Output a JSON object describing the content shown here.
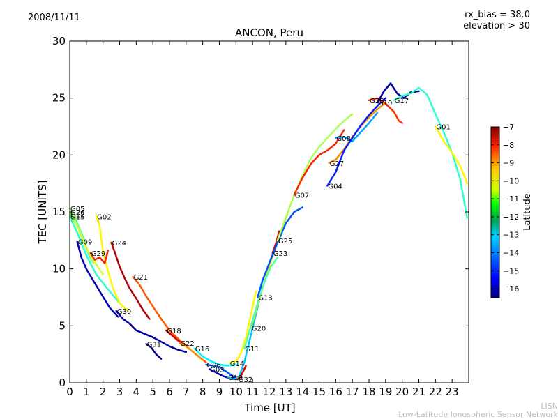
{
  "header": {
    "date": "2008/11/11",
    "note_bias": "rx_bias = 38.0",
    "note_elevation": "elevation > 30"
  },
  "footer": {
    "credit_short": "LISN",
    "credit_long": "Low-Latitude Ionospheric Sensor Network"
  },
  "chart_data": {
    "type": "line",
    "title": "ANCON, Peru",
    "xlabel": "Time [UT]",
    "ylabel": "TEC [UNITS]",
    "xlim": [
      0,
      24
    ],
    "ylim": [
      0,
      30
    ],
    "xticks": [
      "0",
      "1",
      "2",
      "3",
      "4",
      "5",
      "6",
      "7",
      "8",
      "9",
      "10",
      "11",
      "12",
      "13",
      "14",
      "15",
      "16",
      "17",
      "18",
      "19",
      "20",
      "21",
      "22",
      "23"
    ],
    "yticks": [
      "0",
      "5",
      "10",
      "15",
      "20",
      "25",
      "30"
    ],
    "grid": false,
    "colorbar": {
      "label": "Latitude",
      "range": [
        -16.5,
        -7
      ],
      "ticks": [
        "−7",
        "−8",
        "−9",
        "−10",
        "−11",
        "−12",
        "−13",
        "−14",
        "−15",
        "−16"
      ],
      "colormap": "jet"
    },
    "series": [
      {
        "name": "G05",
        "lat": -11.5,
        "x": [
          0,
          0.3,
          0.6,
          1.0,
          1.4
        ],
        "y": [
          15.3,
          14.8,
          13.2,
          11.8,
          10.5
        ]
      },
      {
        "name": "G26",
        "lat": -12.0,
        "x": [
          0,
          0.4,
          0.8,
          1.2
        ],
        "y": [
          15.0,
          14.2,
          12.8,
          11.0
        ]
      },
      {
        "name": "G12",
        "lat": -11.0,
        "x": [
          0,
          0.5,
          1.0,
          1.5,
          2.0
        ],
        "y": [
          14.8,
          13.6,
          11.8,
          10.6,
          9.5
        ]
      },
      {
        "name": "G15",
        "lat": -12.5,
        "x": [
          0,
          0.5,
          1.0,
          1.6,
          2.3,
          3.0
        ],
        "y": [
          14.6,
          13.0,
          11.2,
          9.5,
          8.2,
          7.0
        ]
      },
      {
        "name": "G02",
        "lat": -10.5,
        "x": [
          1.6,
          1.8,
          2.0,
          2.3,
          2.6,
          3.0,
          3.5
        ],
        "y": [
          14.6,
          13.8,
          11.5,
          9.8,
          8.3,
          7.0,
          6.3
        ]
      },
      {
        "name": "G09",
        "lat": -16.0,
        "x": [
          0.45,
          0.7,
          1.0,
          1.4,
          1.9,
          2.4,
          2.9
        ],
        "y": [
          12.4,
          11.0,
          10.0,
          9.0,
          7.8,
          6.6,
          5.8
        ]
      },
      {
        "name": "G29",
        "lat": -8.5,
        "x": [
          1.25,
          1.5,
          1.8,
          2.1,
          2.3
        ],
        "y": [
          11.4,
          10.8,
          11.0,
          10.5,
          11.6
        ]
      },
      {
        "name": "G24",
        "lat": -7.5,
        "x": [
          2.5,
          2.7,
          3.0,
          3.3,
          3.6,
          4.0,
          4.4,
          4.8
        ],
        "y": [
          12.3,
          11.5,
          10.2,
          9.2,
          8.3,
          7.4,
          6.4,
          5.6
        ]
      },
      {
        "name": "G21",
        "lat": -9.0,
        "x": [
          3.8,
          4.2,
          4.6,
          5.0,
          5.5,
          6.0,
          6.5,
          7.0,
          7.6,
          8.2
        ],
        "y": [
          9.3,
          8.6,
          7.6,
          6.7,
          5.6,
          4.6,
          3.9,
          3.2,
          2.5,
          1.8
        ]
      },
      {
        "name": "G30",
        "lat": -16.2,
        "x": [
          2.8,
          3.2,
          3.6,
          4.0,
          4.5,
          5.0,
          5.5,
          6.0,
          6.5,
          7.0
        ],
        "y": [
          6.3,
          5.6,
          5.2,
          4.6,
          4.3,
          4.0,
          3.6,
          3.2,
          2.9,
          2.7
        ]
      },
      {
        "name": "G31",
        "lat": -16.4,
        "x": [
          4.6,
          4.9,
          5.2,
          5.5
        ],
        "y": [
          3.4,
          3.1,
          2.5,
          2.1
        ]
      },
      {
        "name": "G18",
        "lat": -7.8,
        "x": [
          5.8,
          6.2,
          6.6,
          7.0
        ],
        "y": [
          4.6,
          4.1,
          3.6,
          3.2
        ]
      },
      {
        "name": "G22",
        "lat": -9.5,
        "x": [
          6.6,
          7.0,
          7.5,
          8.0
        ],
        "y": [
          3.5,
          3.2,
          2.6,
          2.0
        ]
      },
      {
        "name": "G16",
        "lat": -13.0,
        "x": [
          7.5,
          8.0,
          8.5,
          9.0,
          9.5,
          10.0
        ],
        "y": [
          3.0,
          2.3,
          1.9,
          1.6,
          1.5,
          1.6
        ]
      },
      {
        "name": "G06",
        "lat": -14.5,
        "x": [
          8.2,
          8.6,
          9.0,
          9.4,
          9.8
        ],
        "y": [
          1.6,
          1.5,
          1.4,
          1.0,
          0.6
        ]
      },
      {
        "name": "G03",
        "lat": -16.0,
        "x": [
          8.4,
          8.8,
          9.2,
          9.6,
          10.0
        ],
        "y": [
          1.2,
          0.9,
          0.6,
          0.4,
          0.5
        ]
      },
      {
        "name": "G14",
        "lat": -10.5,
        "x": [
          9.6,
          10.0,
          10.3,
          10.6,
          10.9,
          11.2
        ],
        "y": [
          1.7,
          1.9,
          2.6,
          4.0,
          6.0,
          8.0
        ]
      },
      {
        "name": "G19",
        "lat": -13.5,
        "x": [
          9.5,
          9.9,
          10.2,
          10.5,
          10.8,
          11.2,
          11.6
        ],
        "y": [
          0.5,
          0.3,
          0.6,
          1.8,
          3.6,
          6.0,
          8.5
        ]
      },
      {
        "name": "G32",
        "lat": -7.8,
        "x": [
          10.1,
          10.3,
          10.6
        ],
        "y": [
          0.3,
          0.6,
          1.5
        ]
      },
      {
        "name": "G20",
        "lat": -10.2,
        "x": [
          10.9,
          11.2,
          11.5,
          11.9,
          12.3,
          12.7,
          13.1
        ],
        "y": [
          4.8,
          6.3,
          7.8,
          9.8,
          11.5,
          13.2,
          14.8
        ]
      },
      {
        "name": "G11",
        "lat": -12.2,
        "x": [
          10.5,
          10.9,
          11.3,
          11.7,
          12.1,
          12.5
        ],
        "y": [
          3.0,
          5.0,
          7.0,
          8.8,
          10.2,
          11.0
        ]
      },
      {
        "name": "G23",
        "lat": -7.8,
        "x": [
          12.2,
          12.4,
          12.6
        ],
        "y": [
          11.4,
          12.2,
          13.3
        ]
      },
      {
        "name": "G13",
        "lat": -14.5,
        "x": [
          11.3,
          11.6,
          12.0,
          12.5,
          13.0,
          13.5,
          14.0
        ],
        "y": [
          7.5,
          9.0,
          10.5,
          12.3,
          14.0,
          15.0,
          15.4
        ]
      },
      {
        "name": "G25",
        "lat": -11.3,
        "x": [
          12.5,
          13.0,
          13.5,
          14.0,
          14.5,
          15.0,
          15.5,
          16.0,
          16.5,
          17.0
        ],
        "y": [
          12.5,
          14.5,
          16.5,
          18.2,
          19.7,
          20.7,
          21.5,
          22.3,
          23.0,
          23.6
        ]
      },
      {
        "name": "G07",
        "lat": -8.5,
        "x": [
          13.5,
          14.0,
          14.5,
          15.0,
          15.5,
          16.0,
          16.5
        ],
        "y": [
          16.5,
          18.0,
          19.2,
          20.0,
          20.4,
          21.0,
          22.2
        ]
      },
      {
        "name": "G27",
        "lat": -9.5,
        "x": [
          15.6,
          16.0,
          16.5,
          17.0,
          17.5,
          18.0,
          18.5,
          19.0
        ],
        "y": [
          19.3,
          19.6,
          20.5,
          21.6,
          22.5,
          23.3,
          24.0,
          24.6
        ]
      },
      {
        "name": "G08",
        "lat": -13.8,
        "x": [
          16.0,
          16.5,
          17.0,
          17.5,
          18.0,
          18.5
        ],
        "y": [
          21.5,
          21.6,
          21.2,
          22.0,
          22.8,
          23.7
        ]
      },
      {
        "name": "G04",
        "lat": -15.0,
        "x": [
          15.5,
          16.0,
          16.5,
          17.0,
          17.5,
          18.0,
          18.5,
          19.0
        ],
        "y": [
          17.3,
          18.5,
          20.4,
          21.5,
          22.6,
          23.5,
          24.3,
          25.0
        ]
      },
      {
        "name": "G28",
        "lat": -8.6,
        "x": [
          18.0,
          18.5,
          19.0,
          19.5,
          19.8,
          20.0
        ],
        "y": [
          24.8,
          25.0,
          24.5,
          23.8,
          23.0,
          22.8
        ]
      },
      {
        "name": "G10",
        "lat": -16.2,
        "x": [
          18.5,
          18.9,
          19.3,
          19.7,
          20.1,
          20.5,
          21.0
        ],
        "y": [
          24.6,
          25.6,
          26.3,
          25.4,
          25.0,
          25.5,
          25.6
        ]
      },
      {
        "name": "G17",
        "lat": -12.5,
        "x": [
          19.5,
          20.0,
          20.5,
          21.0,
          21.5,
          22.0,
          22.5,
          23.0,
          23.5,
          23.9
        ],
        "y": [
          24.8,
          25.2,
          25.4,
          25.9,
          25.3,
          23.6,
          22.0,
          20.2,
          17.8,
          14.5
        ]
      },
      {
        "name": "G01",
        "lat": -10.5,
        "x": [
          22.0,
          22.5,
          23.0,
          23.5,
          23.9
        ],
        "y": [
          22.5,
          21.2,
          20.2,
          19.0,
          17.5
        ]
      }
    ]
  }
}
